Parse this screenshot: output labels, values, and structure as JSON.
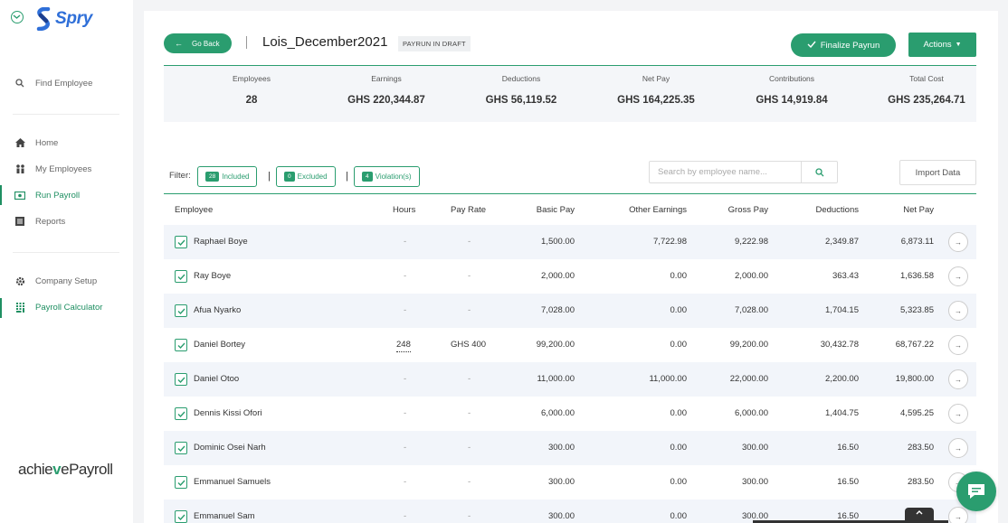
{
  "brand": {
    "name": "Spry",
    "footer_logo_prefix": "achie",
    "footer_logo_v": "v",
    "footer_logo_suffix": "ePayroll",
    "accent": "#2a9d6f",
    "logo_color": "#2f6fd8"
  },
  "sidebar": {
    "find_employee": "Find Employee",
    "items": [
      {
        "label": "Home",
        "icon": "home-icon"
      },
      {
        "label": "My Employees",
        "icon": "people-icon"
      },
      {
        "label": "Run Payroll",
        "icon": "cash-icon",
        "active": true
      },
      {
        "label": "Reports",
        "icon": "list-icon"
      }
    ],
    "items2": [
      {
        "label": "Company Setup",
        "icon": "gear-icon"
      },
      {
        "label": "Payroll Calculator",
        "icon": "calculator-icon",
        "active": true
      }
    ]
  },
  "header": {
    "go_back": "Go Back",
    "title": "Lois_December2021",
    "status": "PAYRUN IN DRAFT",
    "finalize": "Finalize Payrun",
    "actions": "Actions"
  },
  "summary": [
    {
      "label": "Employees",
      "value": "28"
    },
    {
      "label": "Earnings",
      "value": "GHS 220,344.87"
    },
    {
      "label": "Deductions",
      "value": "GHS 56,119.52"
    },
    {
      "label": "Net Pay",
      "value": "GHS 164,225.35"
    },
    {
      "label": "Contributions",
      "value": "GHS 14,919.84"
    },
    {
      "label": "Total Cost",
      "value": "GHS 235,264.71"
    }
  ],
  "filters": {
    "label": "Filter:",
    "included": {
      "count": "28",
      "label": "Included"
    },
    "excluded": {
      "count": "0",
      "label": "Excluded"
    },
    "violations": {
      "count": "4",
      "label": "Violation(s)"
    },
    "separator": "|"
  },
  "search": {
    "placeholder": "Search by employee name...",
    "value": ""
  },
  "import_label": "Import Data",
  "table": {
    "headers": [
      "Employee",
      "Hours",
      "Pay Rate",
      "Basic Pay",
      "Other Earnings",
      "Gross Pay",
      "Deductions",
      "Net Pay"
    ],
    "rows": [
      {
        "name": "Raphael Boye",
        "hours": "-",
        "rate": "-",
        "basic": "1,500.00",
        "other": "7,722.98",
        "gross": "9,222.98",
        "ded": "2,349.87",
        "net": "6,873.11"
      },
      {
        "name": "Ray Boye",
        "hours": "-",
        "rate": "-",
        "basic": "2,000.00",
        "other": "0.00",
        "gross": "2,000.00",
        "ded": "363.43",
        "net": "1,636.58"
      },
      {
        "name": "Afua Nyarko",
        "hours": "-",
        "rate": "-",
        "basic": "7,028.00",
        "other": "0.00",
        "gross": "7,028.00",
        "ded": "1,704.15",
        "net": "5,323.85"
      },
      {
        "name": "Daniel Bortey",
        "hours": "248",
        "rate": "GHS 400",
        "basic": "99,200.00",
        "other": "0.00",
        "gross": "99,200.00",
        "ded": "30,432.78",
        "net": "68,767.22"
      },
      {
        "name": "Daniel Otoo",
        "hours": "-",
        "rate": "-",
        "basic": "11,000.00",
        "other": "11,000.00",
        "gross": "22,000.00",
        "ded": "2,200.00",
        "net": "19,800.00"
      },
      {
        "name": "Dennis Kissi Ofori",
        "hours": "-",
        "rate": "-",
        "basic": "6,000.00",
        "other": "0.00",
        "gross": "6,000.00",
        "ded": "1,404.75",
        "net": "4,595.25"
      },
      {
        "name": "Dominic Osei Narh",
        "hours": "-",
        "rate": "-",
        "basic": "300.00",
        "other": "0.00",
        "gross": "300.00",
        "ded": "16.50",
        "net": "283.50"
      },
      {
        "name": "Emmanuel Samuels",
        "hours": "-",
        "rate": "-",
        "basic": "300.00",
        "other": "0.00",
        "gross": "300.00",
        "ded": "16.50",
        "net": "283.50"
      },
      {
        "name": "Emmanuel Sam",
        "hours": "-",
        "rate": "-",
        "basic": "300.00",
        "other": "0.00",
        "gross": "300.00",
        "ded": "16.50",
        "net": ""
      }
    ]
  }
}
